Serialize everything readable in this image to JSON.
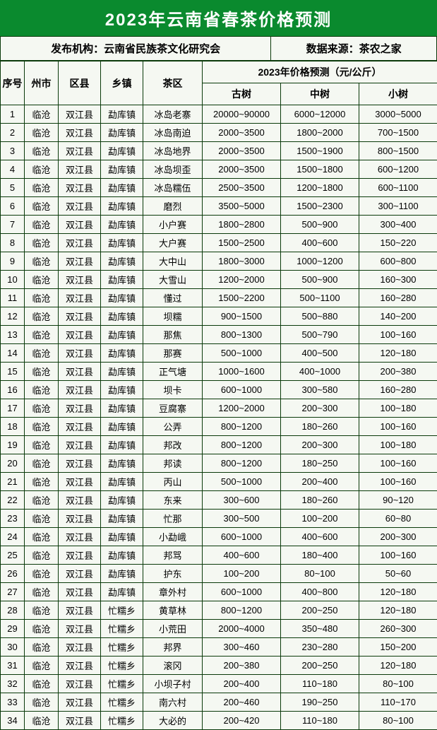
{
  "title": "2023年云南省春茶价格预测",
  "meta": {
    "publisher_label": "发布机构：",
    "publisher_value": "云南省民族茶文化研究会",
    "source_label": "数据来源：",
    "source_value": "茶农之家"
  },
  "headers": {
    "index": "序号",
    "city": "州市",
    "county": "区县",
    "town": "乡镇",
    "area": "茶区",
    "price_group": "2023年价格预测（元/公斤）",
    "p_old": "古树",
    "p_mid": "中树",
    "p_young": "小树"
  },
  "rows": [
    {
      "i": "1",
      "city": "临沧",
      "county": "双江县",
      "town": "勐库镇",
      "area": "冰岛老寨",
      "p1": "20000~90000",
      "p2": "6000~12000",
      "p3": "3000~5000"
    },
    {
      "i": "2",
      "city": "临沧",
      "county": "双江县",
      "town": "勐库镇",
      "area": "冰岛南迫",
      "p1": "2000~3500",
      "p2": "1800~2000",
      "p3": "700~1500"
    },
    {
      "i": "3",
      "city": "临沧",
      "county": "双江县",
      "town": "勐库镇",
      "area": "冰岛地界",
      "p1": "2000~3500",
      "p2": "1500~1900",
      "p3": "800~1500"
    },
    {
      "i": "4",
      "city": "临沧",
      "county": "双江县",
      "town": "勐库镇",
      "area": "冰岛坝歪",
      "p1": "2000~3500",
      "p2": "1500~1800",
      "p3": "600~1200"
    },
    {
      "i": "5",
      "city": "临沧",
      "county": "双江县",
      "town": "勐库镇",
      "area": "冰岛糯伍",
      "p1": "2500~3500",
      "p2": "1200~1800",
      "p3": "600~1100"
    },
    {
      "i": "6",
      "city": "临沧",
      "county": "双江县",
      "town": "勐库镇",
      "area": "磨烈",
      "p1": "3500~5000",
      "p2": "1500~2300",
      "p3": "300~1100"
    },
    {
      "i": "7",
      "city": "临沧",
      "county": "双江县",
      "town": "勐库镇",
      "area": "小户赛",
      "p1": "1800~2800",
      "p2": "500~900",
      "p3": "300~400"
    },
    {
      "i": "8",
      "city": "临沧",
      "county": "双江县",
      "town": "勐库镇",
      "area": "大户赛",
      "p1": "1500~2500",
      "p2": "400~600",
      "p3": "150~220"
    },
    {
      "i": "9",
      "city": "临沧",
      "county": "双江县",
      "town": "勐库镇",
      "area": "大中山",
      "p1": "1800~3000",
      "p2": "1000~1200",
      "p3": "600~800"
    },
    {
      "i": "10",
      "city": "临沧",
      "county": "双江县",
      "town": "勐库镇",
      "area": "大雪山",
      "p1": "1200~2000",
      "p2": "500~900",
      "p3": "160~300"
    },
    {
      "i": "11",
      "city": "临沧",
      "county": "双江县",
      "town": "勐库镇",
      "area": "懂过",
      "p1": "1500~2200",
      "p2": "500~1100",
      "p3": "160~280"
    },
    {
      "i": "12",
      "city": "临沧",
      "county": "双江县",
      "town": "勐库镇",
      "area": "坝糯",
      "p1": "900~1500",
      "p2": "500~880",
      "p3": "140~200"
    },
    {
      "i": "13",
      "city": "临沧",
      "county": "双江县",
      "town": "勐库镇",
      "area": "那焦",
      "p1": "800~1300",
      "p2": "500~790",
      "p3": "100~160"
    },
    {
      "i": "14",
      "city": "临沧",
      "county": "双江县",
      "town": "勐库镇",
      "area": "那赛",
      "p1": "500~1000",
      "p2": "400~500",
      "p3": "120~180"
    },
    {
      "i": "15",
      "city": "临沧",
      "county": "双江县",
      "town": "勐库镇",
      "area": "正气塘",
      "p1": "1000~1600",
      "p2": "400~1000",
      "p3": "200~380"
    },
    {
      "i": "16",
      "city": "临沧",
      "county": "双江县",
      "town": "勐库镇",
      "area": "坝卡",
      "p1": "600~1000",
      "p2": "300~580",
      "p3": "160~280"
    },
    {
      "i": "17",
      "city": "临沧",
      "county": "双江县",
      "town": "勐库镇",
      "area": "豆腐寨",
      "p1": "1200~2000",
      "p2": "200~300",
      "p3": "100~180"
    },
    {
      "i": "18",
      "city": "临沧",
      "county": "双江县",
      "town": "勐库镇",
      "area": "公弄",
      "p1": "800~1200",
      "p2": "180~260",
      "p3": "100~160"
    },
    {
      "i": "19",
      "city": "临沧",
      "county": "双江县",
      "town": "勐库镇",
      "area": "邦改",
      "p1": "800~1200",
      "p2": "200~300",
      "p3": "100~180"
    },
    {
      "i": "20",
      "city": "临沧",
      "county": "双江县",
      "town": "勐库镇",
      "area": "邦读",
      "p1": "800~1200",
      "p2": "180~250",
      "p3": "100~160"
    },
    {
      "i": "21",
      "city": "临沧",
      "county": "双江县",
      "town": "勐库镇",
      "area": "丙山",
      "p1": "500~1000",
      "p2": "200~400",
      "p3": "100~160"
    },
    {
      "i": "22",
      "city": "临沧",
      "county": "双江县",
      "town": "勐库镇",
      "area": "东来",
      "p1": "300~600",
      "p2": "180~260",
      "p3": "90~120"
    },
    {
      "i": "23",
      "city": "临沧",
      "county": "双江县",
      "town": "勐库镇",
      "area": "忙那",
      "p1": "300~500",
      "p2": "100~200",
      "p3": "60~80"
    },
    {
      "i": "24",
      "city": "临沧",
      "county": "双江县",
      "town": "勐库镇",
      "area": "小勐峨",
      "p1": "600~1000",
      "p2": "400~600",
      "p3": "200~300"
    },
    {
      "i": "25",
      "city": "临沧",
      "county": "双江县",
      "town": "勐库镇",
      "area": "邦骂",
      "p1": "400~600",
      "p2": "180~400",
      "p3": "100~160"
    },
    {
      "i": "26",
      "city": "临沧",
      "county": "双江县",
      "town": "勐库镇",
      "area": "护东",
      "p1": "100~200",
      "p2": "80~100",
      "p3": "50~60"
    },
    {
      "i": "27",
      "city": "临沧",
      "county": "双江县",
      "town": "勐库镇",
      "area": "章外村",
      "p1": "600~1000",
      "p2": "400~800",
      "p3": "120~180"
    },
    {
      "i": "28",
      "city": "临沧",
      "county": "双江县",
      "town": "忙糯乡",
      "area": "黄草林",
      "p1": "800~1200",
      "p2": "200~250",
      "p3": "120~180"
    },
    {
      "i": "29",
      "city": "临沧",
      "county": "双江县",
      "town": "忙糯乡",
      "area": "小荒田",
      "p1": "2000~4000",
      "p2": "350~480",
      "p3": "260~300"
    },
    {
      "i": "30",
      "city": "临沧",
      "county": "双江县",
      "town": "忙糯乡",
      "area": "邦界",
      "p1": "300~460",
      "p2": "230~280",
      "p3": "150~200"
    },
    {
      "i": "31",
      "city": "临沧",
      "county": "双江县",
      "town": "忙糯乡",
      "area": "滚冈",
      "p1": "200~380",
      "p2": "200~250",
      "p3": "120~180"
    },
    {
      "i": "32",
      "city": "临沧",
      "county": "双江县",
      "town": "忙糯乡",
      "area": "小坝子村",
      "p1": "200~400",
      "p2": "110~180",
      "p3": "80~100"
    },
    {
      "i": "33",
      "city": "临沧",
      "county": "双江县",
      "town": "忙糯乡",
      "area": "南六村",
      "p1": "200~460",
      "p2": "190~250",
      "p3": "110~170"
    },
    {
      "i": "34",
      "city": "临沧",
      "county": "双江县",
      "town": "忙糯乡",
      "area": "大必的",
      "p1": "200~420",
      "p2": "110~180",
      "p3": "80~100"
    }
  ],
  "style": {
    "title_bg": "#0a8a2e",
    "title_color": "#ffffff",
    "border_color": "#0a3a0a",
    "body_bg": "#f5f8f2",
    "title_fontsize": 24,
    "header_fontsize": 14,
    "cell_fontsize": 13
  }
}
